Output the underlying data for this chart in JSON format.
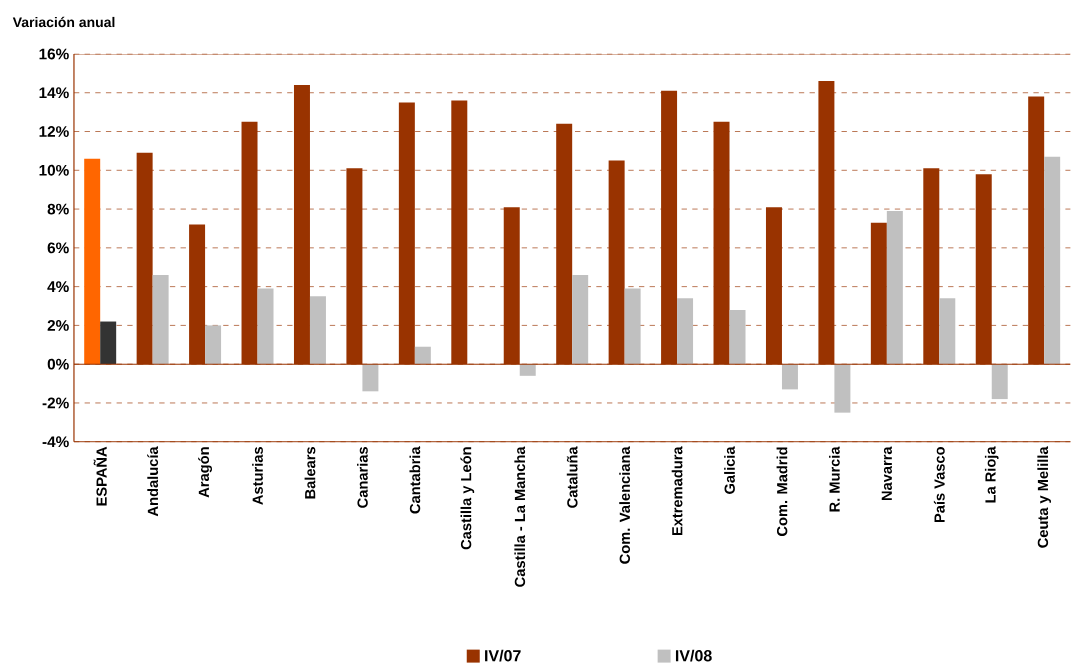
{
  "chart_data": {
    "type": "bar",
    "ylabel": "Variación anual",
    "categories": [
      "ESPAÑA",
      "Andalucía",
      "Aragón",
      "Asturias",
      "Balears",
      "Canarias",
      "Cantabria",
      "Castilla y León",
      "Castilla - La Mancha",
      "Cataluña",
      "Com. Valenciana",
      "Extremadura",
      "Galicia",
      "Com. Madrid",
      "R. Murcia",
      "Navarra",
      "País Vasco",
      "La Rioja",
      "Ceuta y Melilla"
    ],
    "series": [
      {
        "name": "IV/07",
        "color": "#993300",
        "colors": [
          "#ff6600",
          "#993300",
          "#993300",
          "#993300",
          "#993300",
          "#993300",
          "#993300",
          "#993300",
          "#993300",
          "#993300",
          "#993300",
          "#993300",
          "#993300",
          "#993300",
          "#993300",
          "#993300",
          "#993300",
          "#993300",
          "#993300"
        ],
        "values": [
          10.6,
          10.9,
          7.2,
          12.5,
          14.4,
          10.1,
          13.5,
          13.6,
          8.1,
          12.4,
          10.5,
          14.1,
          12.5,
          8.1,
          14.6,
          7.3,
          10.1,
          9.8,
          13.8
        ]
      },
      {
        "name": "IV/08",
        "color": "#c0c0c0",
        "colors": [
          "#333333",
          "#c0c0c0",
          "#c0c0c0",
          "#c0c0c0",
          "#c0c0c0",
          "#c0c0c0",
          "#c0c0c0",
          "#c0c0c0",
          "#c0c0c0",
          "#c0c0c0",
          "#c0c0c0",
          "#c0c0c0",
          "#c0c0c0",
          "#c0c0c0",
          "#c0c0c0",
          "#c0c0c0",
          "#c0c0c0",
          "#c0c0c0",
          "#c0c0c0"
        ],
        "values": [
          2.2,
          4.6,
          2.0,
          3.9,
          3.5,
          -1.4,
          0.9,
          null,
          -0.6,
          4.6,
          3.9,
          3.4,
          2.8,
          -1.3,
          -2.5,
          7.9,
          3.4,
          -1.8,
          10.7
        ]
      }
    ],
    "ylim": [
      -4,
      16
    ],
    "yticks": [
      {
        "value": -4,
        "label": "-4%"
      },
      {
        "value": -2,
        "label": "-2%"
      },
      {
        "value": 0,
        "label": "0%"
      },
      {
        "value": 2,
        "label": "2%"
      },
      {
        "value": 4,
        "label": "4%"
      },
      {
        "value": 6,
        "label": "6%"
      },
      {
        "value": 8,
        "label": "8%"
      },
      {
        "value": 10,
        "label": "10%"
      },
      {
        "value": 12,
        "label": "12%"
      },
      {
        "value": 14,
        "label": "14%"
      },
      {
        "value": 16,
        "label": "16%"
      }
    ],
    "ref_lines": [
      {
        "axis": "y",
        "value": 0,
        "color": "#993300",
        "line_style": "solid"
      }
    ],
    "grid": "y",
    "legend": "bottom"
  }
}
